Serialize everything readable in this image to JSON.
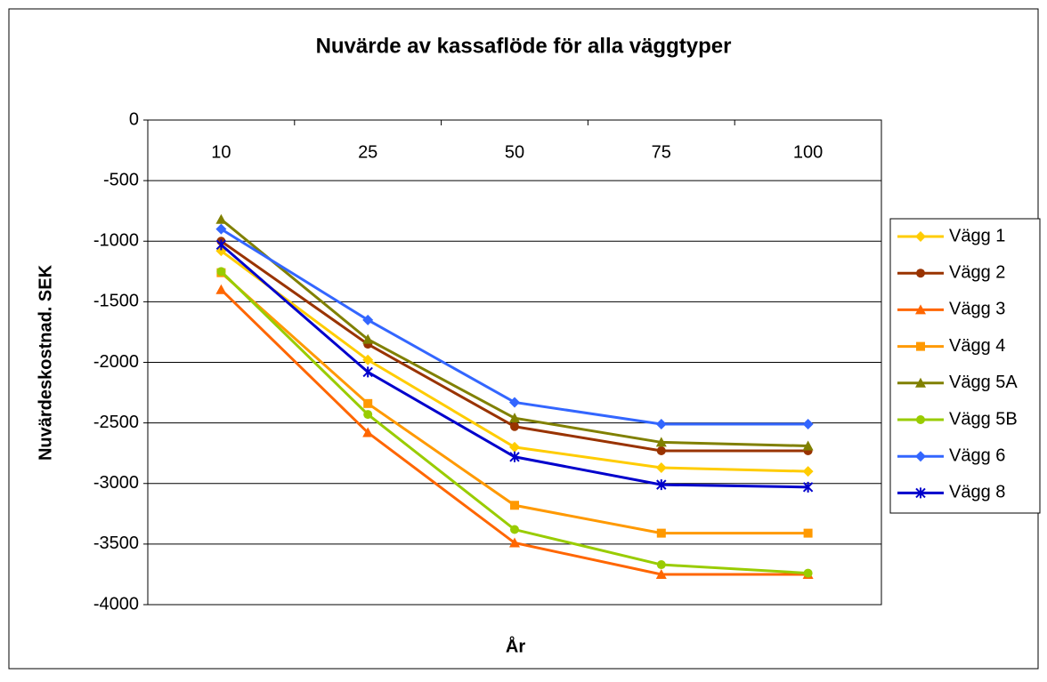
{
  "chart_data": {
    "type": "line",
    "title": "Nuvärde av kassaflöde för alla väggtyper",
    "x_label": "År",
    "y_label": "Nuvärdeskostnad. SEK",
    "categories": [
      "10",
      "25",
      "50",
      "75",
      "100"
    ],
    "ylim": [
      -4000,
      0
    ],
    "yticks": [
      0,
      -500,
      -1000,
      -1500,
      -2000,
      -2500,
      -3000,
      -3500,
      -4000
    ],
    "grid": true,
    "legend": "right",
    "series": [
      {
        "name": "Vägg 1",
        "color": "#FFCC00",
        "marker": "diamond",
        "values": [
          -1080,
          -1980,
          -2700,
          -2870,
          -2900
        ]
      },
      {
        "name": "Vägg 2",
        "color": "#993300",
        "marker": "circle",
        "values": [
          -1000,
          -1850,
          -2530,
          -2730,
          -2730
        ]
      },
      {
        "name": "Vägg 3",
        "color": "#FF6600",
        "marker": "triangle",
        "values": [
          -1400,
          -2580,
          -3490,
          -3750,
          -3750
        ]
      },
      {
        "name": "Vägg 4",
        "color": "#FF9900",
        "marker": "square",
        "values": [
          -1260,
          -2340,
          -3180,
          -3410,
          -3410
        ]
      },
      {
        "name": "Vägg 5A",
        "color": "#808000",
        "marker": "triangle",
        "values": [
          -820,
          -1810,
          -2460,
          -2660,
          -2690
        ]
      },
      {
        "name": "Vägg 5B",
        "color": "#99CC00",
        "marker": "circle",
        "values": [
          -1250,
          -2430,
          -3380,
          -3670,
          -3740
        ]
      },
      {
        "name": "Vägg 6",
        "color": "#3366FF",
        "marker": "diamond",
        "values": [
          -900,
          -1650,
          -2330,
          -2510,
          -2510
        ]
      },
      {
        "name": "Vägg 8",
        "color": "#0000CC",
        "marker": "star",
        "values": [
          -1030,
          -2080,
          -2780,
          -3010,
          -3030
        ]
      }
    ]
  }
}
